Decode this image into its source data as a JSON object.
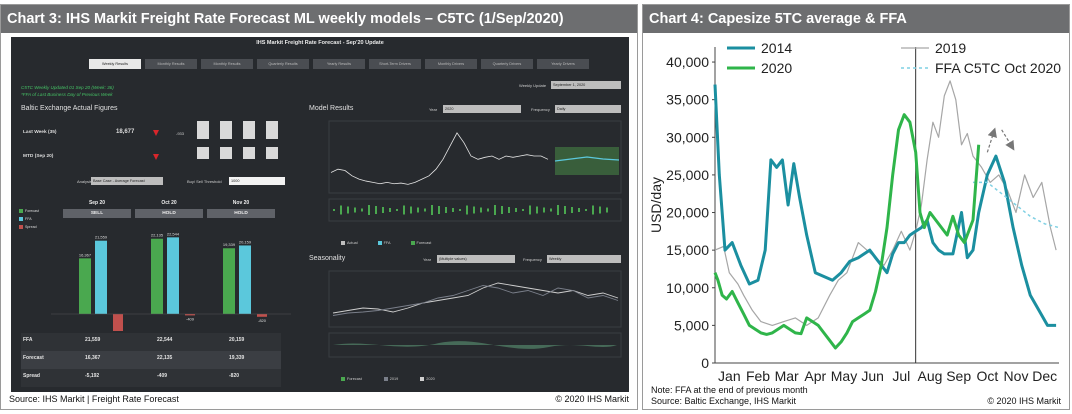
{
  "left_panel": {
    "title": "Chart 3: IHS Markit Freight Rate Forecast ML weekly models – C5TC (1/Sep/2020)",
    "source": "Source: IHS Markit | Freight Rate Forecast",
    "copyright": "© 2020 IHS Markit",
    "dashboard": {
      "title": "IHS Markit Freight Rate Forecast - Sep'20 Update",
      "tabs": [
        "Weekly Results",
        "Monthly Results",
        "Monthly Results",
        "Quarterly Results",
        "Yearly Results",
        "Short-Term Drivers",
        "Monthly Drivers",
        "Quarterly Drivers",
        "Yearly Drivers"
      ],
      "note1": "C5TC Weekly Updated 01 Sep 20 (Week: 36)",
      "note2": "*FFA of Last Business Day of Previous Week",
      "weekly_update_label": "Weekly Update",
      "weekly_update_value": "September 1, 2020",
      "baltic_heading": "Baltic Exchange Actual Figures",
      "last_week_label": "Last Week (35)",
      "last_week_value": "18,677",
      "last_week_change": "-933",
      "mtd_label": "MTD (Sep 20)",
      "analysis_label": "Analysis",
      "analysis_value": "Base Case - Average Forecast",
      "threshold_label": "Buy/ Sell Threshold",
      "threshold_value": "1000",
      "model_results_heading": "Model Results",
      "seasonality_heading": "Seasonality",
      "year_label": "Year",
      "year_value": "2020",
      "frequency_label": "Frequency",
      "frequency_value": "Daily",
      "season_year_value": "(Multiple values)",
      "season_freq_value": "Weekly",
      "model_legend": [
        "Actual",
        "FFA",
        "Forecast"
      ],
      "season_legend": [
        "Forecast",
        "2019",
        "2020"
      ],
      "bar_legend": [
        "Forecast",
        "FFA",
        "Spread"
      ],
      "months": [
        {
          "month": "Sep 20",
          "signal": "SELL",
          "forecast": 16367,
          "ffa": 21559,
          "spread": -5192,
          "forecast_label": "16,367",
          "ffa_label": "21,559",
          "spread_label": "-5,192"
        },
        {
          "month": "Oct 20",
          "signal": "HOLD",
          "forecast": 22135,
          "ffa": 22544,
          "spread": -409,
          "forecast_label": "22,135",
          "ffa_label": "22,544",
          "spread_label": "-409"
        },
        {
          "month": "Nov 20",
          "signal": "HOLD",
          "forecast": 19339,
          "ffa": 20159,
          "spread": -820,
          "forecast_label": "19,339",
          "ffa_label": "20,159",
          "spread_label": "-820"
        }
      ],
      "table_rows": [
        {
          "label": "FFA",
          "values": [
            "21,559",
            "22,544",
            "20,159"
          ]
        },
        {
          "label": "Forecast",
          "values": [
            "16,367",
            "22,135",
            "19,339"
          ]
        },
        {
          "label": "Spread",
          "values": [
            "-5,192",
            "-409",
            "-820"
          ]
        }
      ],
      "colors": {
        "forecast": "#4aa84f",
        "ffa": "#5bc8dc",
        "spread": "#c0504d",
        "signal_red": "#d9262b"
      }
    }
  },
  "right_panel": {
    "title": "Chart 4: Capesize 5TC average & FFA",
    "note": "Note: FFA at the end of previous month",
    "source": "Source: Baltic Exchange, IHS Markit",
    "copyright": "© 2020 IHS Markit"
  },
  "chart_data": {
    "type": "line",
    "title": "Chart 4: Capesize 5TC average & FFA",
    "xlabel": "",
    "ylabel": "USD/day",
    "x_ticks": [
      "Jan",
      "Feb",
      "Mar",
      "Apr",
      "May",
      "Jun",
      "Jul",
      "Aug",
      "Sep",
      "Oct",
      "Nov",
      "Dec"
    ],
    "y_ticks": [
      "0",
      "5,000",
      "10,000",
      "15,000",
      "20,000",
      "25,000",
      "30,000",
      "35,000",
      "40,000"
    ],
    "ylim": [
      0,
      42000
    ],
    "xlim": [
      0,
      12
    ],
    "grid": false,
    "legend": "top",
    "series": [
      {
        "name": "2014",
        "color": "#1b8fa0",
        "x": [
          0.0,
          0.15,
          0.35,
          0.6,
          0.9,
          1.2,
          1.5,
          1.75,
          1.95,
          2.15,
          2.35,
          2.55,
          2.75,
          2.95,
          3.2,
          3.5,
          3.8,
          4.1,
          4.4,
          4.7,
          5.0,
          5.2,
          5.4,
          5.6,
          5.8,
          6.0,
          6.2,
          6.4,
          6.6,
          6.8,
          7.0,
          7.2,
          7.4,
          7.6,
          7.8,
          8.0,
          8.3,
          8.6,
          8.8,
          9.0,
          9.2,
          9.5,
          9.8,
          10.1,
          10.4,
          10.7,
          11.0,
          11.3,
          11.6,
          11.9
        ],
        "y": [
          37000,
          25000,
          15000,
          16000,
          13000,
          10500,
          11000,
          15000,
          27000,
          26000,
          27000,
          21000,
          26500,
          22000,
          17000,
          12000,
          11500,
          11000,
          12000,
          13500,
          14000,
          14500,
          15000,
          14000,
          13000,
          12000,
          14500,
          16000,
          16000,
          17000,
          17500,
          18000,
          19000,
          16000,
          15000,
          14500,
          14500,
          20000,
          14000,
          15000,
          20000,
          25000,
          27500,
          24000,
          18000,
          13000,
          9000,
          7000,
          5000,
          5000
        ]
      },
      {
        "name": "2019",
        "color": "#a6a6a6",
        "x": [
          0.0,
          0.3,
          0.5,
          0.8,
          1.0,
          1.3,
          1.6,
          2.0,
          2.4,
          2.8,
          3.2,
          3.6,
          4.0,
          4.3,
          4.6,
          5.0,
          5.3,
          5.6,
          5.9,
          6.2,
          6.5,
          6.8,
          7.0,
          7.2,
          7.4,
          7.6,
          7.8,
          8.0,
          8.2,
          8.4,
          8.6,
          8.8,
          9.0,
          9.3,
          9.6,
          9.9,
          10.2,
          10.5,
          10.8,
          11.1,
          11.4,
          11.7,
          11.9
        ],
        "y": [
          15000,
          15500,
          12000,
          10500,
          9000,
          7000,
          5500,
          5000,
          5500,
          6000,
          5000,
          6000,
          9000,
          11000,
          12000,
          16000,
          15000,
          14000,
          13000,
          15000,
          17500,
          15000,
          17500,
          21000,
          27000,
          32000,
          30000,
          35500,
          37500,
          35000,
          29000,
          30500,
          27500,
          26000,
          24000,
          25000,
          23000,
          20000,
          25000,
          22000,
          24000,
          18000,
          15000
        ]
      },
      {
        "name": "2020",
        "color": "#2fb54a",
        "x": [
          0.0,
          0.1,
          0.25,
          0.4,
          0.6,
          0.8,
          1.0,
          1.2,
          1.4,
          1.6,
          1.8,
          2.0,
          2.2,
          2.4,
          2.6,
          2.8,
          3.0,
          3.2,
          3.4,
          3.6,
          3.8,
          4.0,
          4.2,
          4.4,
          4.6,
          4.8,
          5.0,
          5.2,
          5.4,
          5.6,
          5.8,
          6.0,
          6.2,
          6.4,
          6.6,
          6.8,
          7.0,
          7.15,
          7.3,
          7.5,
          7.7,
          7.9,
          8.1,
          8.3,
          8.5,
          8.7,
          9.0,
          9.2
        ],
        "y": [
          12000,
          11000,
          9000,
          8500,
          9500,
          8000,
          6500,
          5000,
          4500,
          4000,
          3800,
          4000,
          4500,
          5000,
          4500,
          4000,
          3900,
          6000,
          5500,
          5000,
          4000,
          3000,
          2000,
          2800,
          4000,
          5500,
          6000,
          6500,
          7000,
          9500,
          13000,
          18000,
          25000,
          31000,
          33000,
          32000,
          28000,
          20000,
          18000,
          20000,
          19000,
          18000,
          17000,
          19500,
          17000,
          16000,
          19000,
          29000
        ]
      },
      {
        "name": "FFA C5TC Oct 2020",
        "color": "#7fd0e3",
        "dashed": true,
        "x": [
          9.0,
          9.5,
          10.0,
          10.5,
          11.0,
          11.5,
          12.0
        ],
        "y": [
          24000,
          24000,
          22500,
          21000,
          19500,
          18500,
          18000
        ]
      }
    ],
    "vertical_marker_x": 7.0,
    "annotations": [
      {
        "type": "arrow",
        "from": [
          9.5,
          28000
        ],
        "to": [
          9.75,
          31000
        ]
      },
      {
        "type": "arrow",
        "from": [
          10.0,
          31000
        ],
        "to": [
          10.4,
          28500
        ]
      }
    ]
  }
}
